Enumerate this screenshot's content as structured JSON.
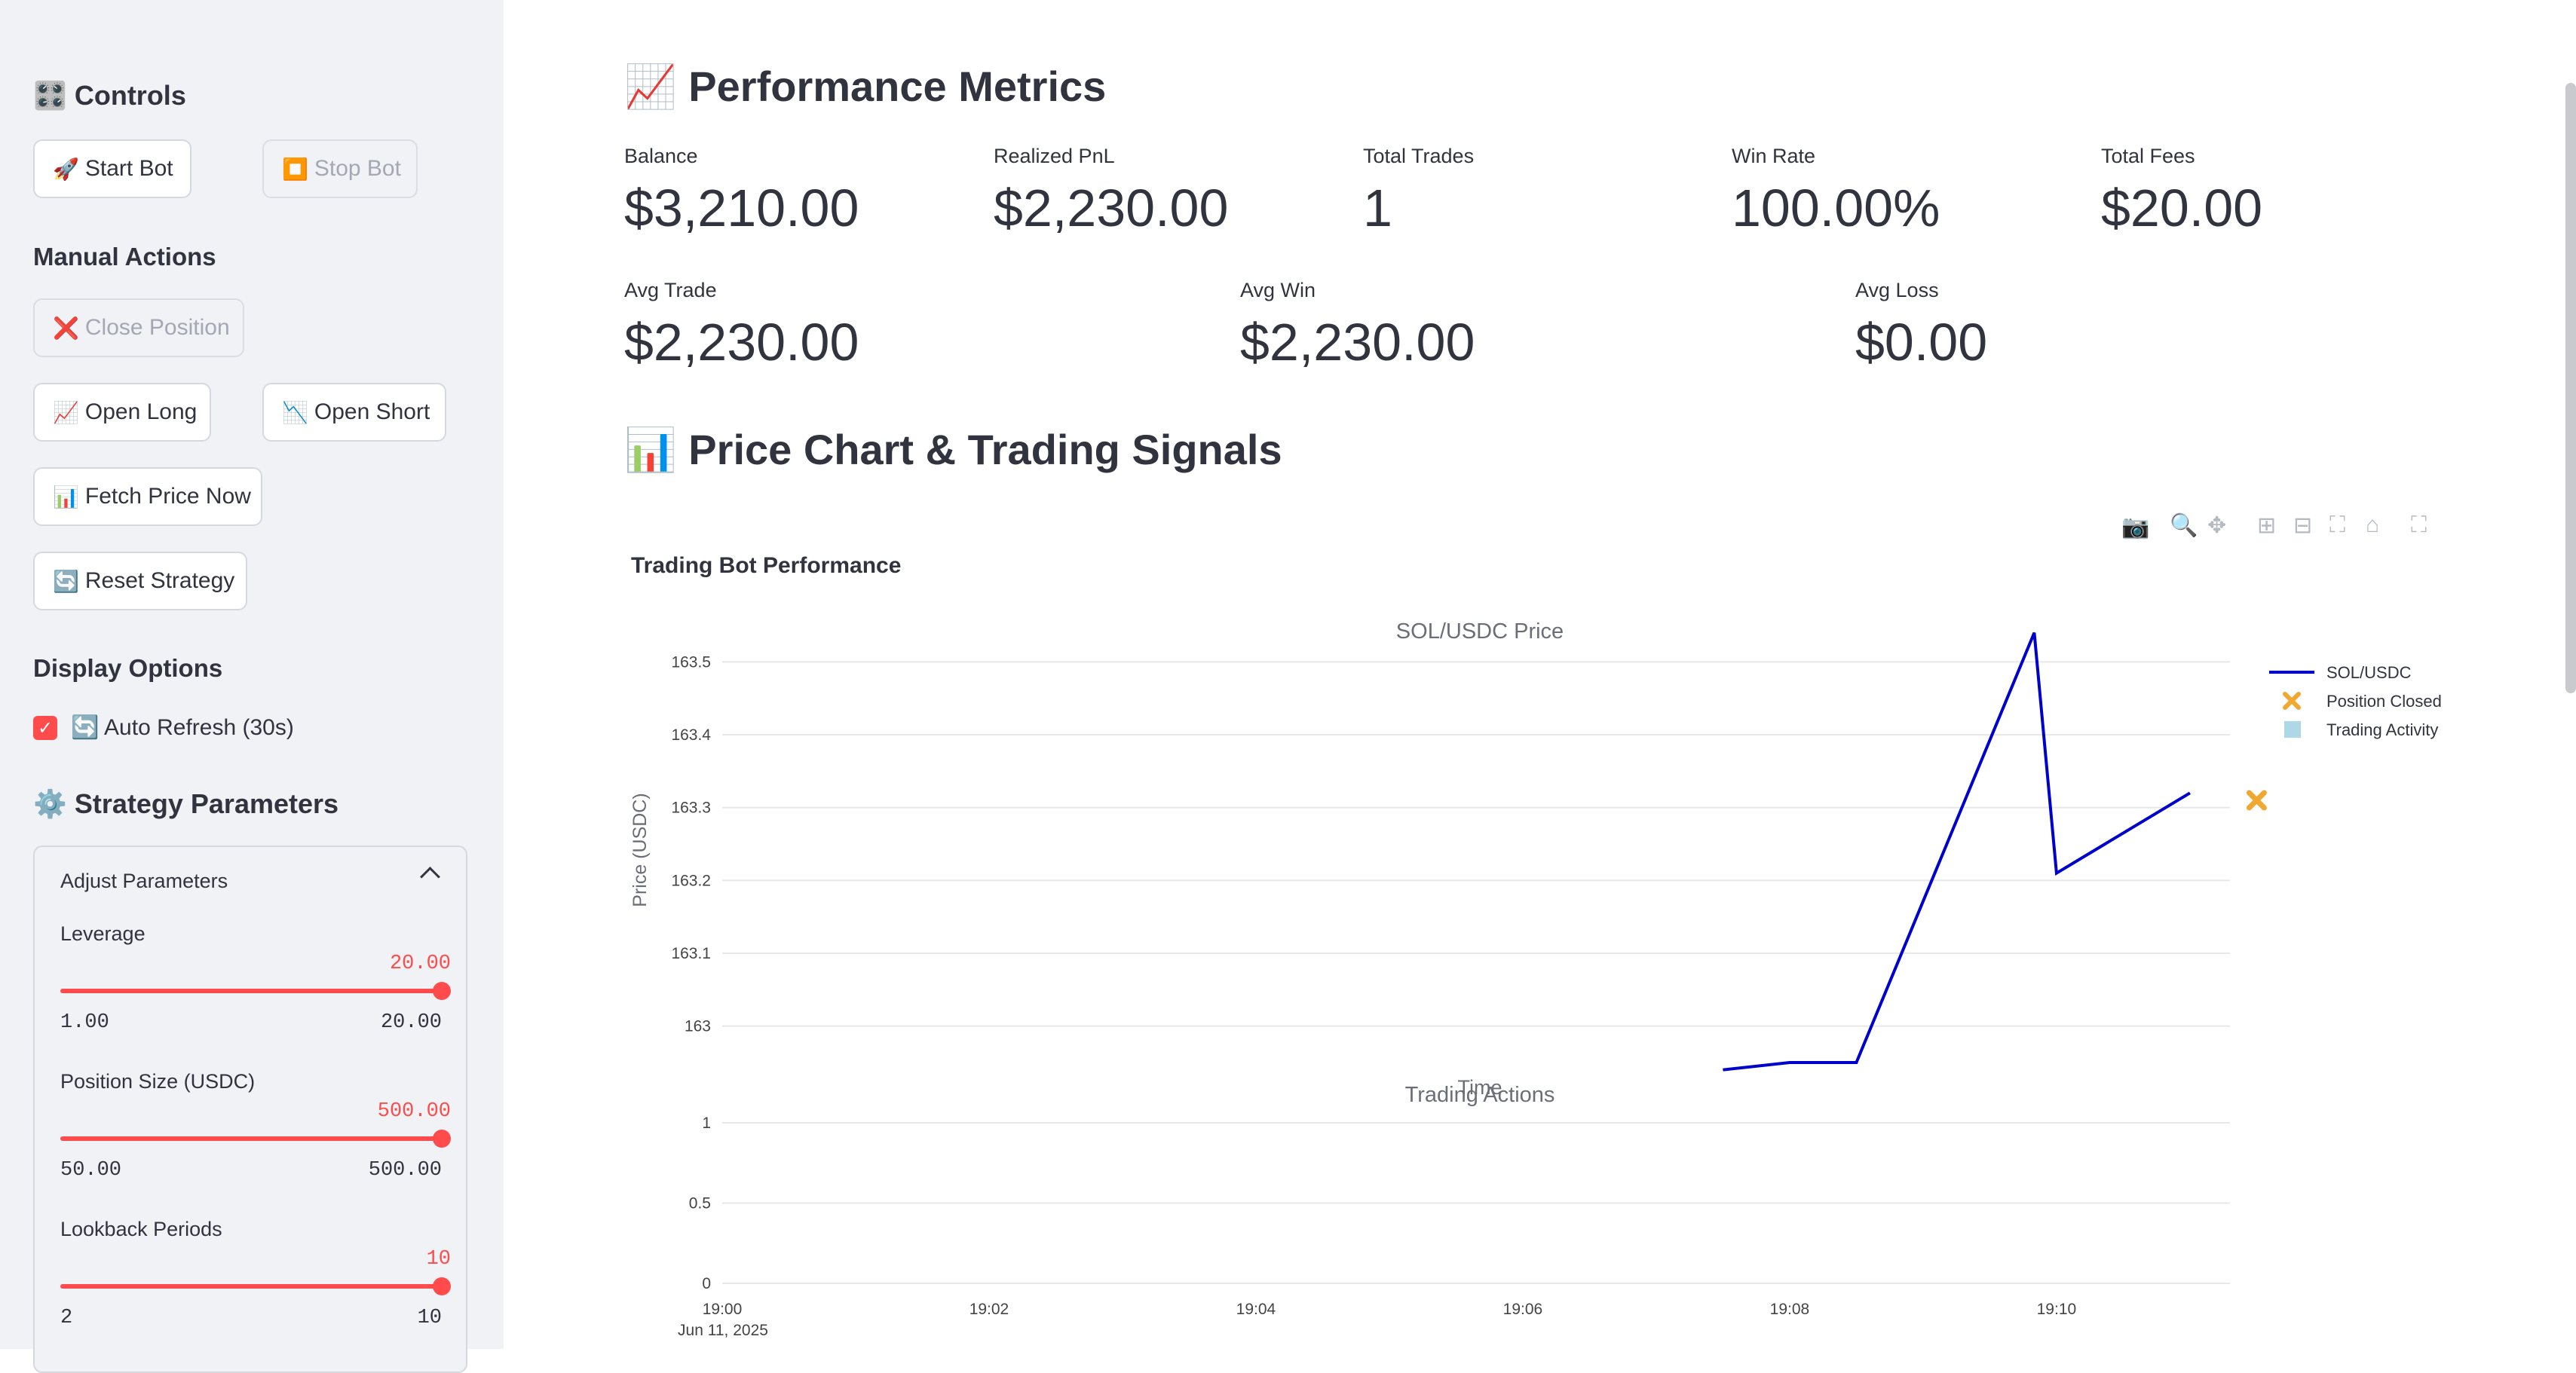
{
  "sidebar": {
    "controls_title": "Controls",
    "start_bot": "Start Bot",
    "stop_bot": "Stop Bot",
    "manual_actions_title": "Manual Actions",
    "close_position": "Close Position",
    "open_long": "Open Long",
    "open_short": "Open Short",
    "fetch_price": "Fetch Price Now",
    "reset_strategy": "Reset Strategy",
    "display_options_title": "Display Options",
    "auto_refresh": "Auto Refresh (30s)",
    "auto_refresh_checked": true,
    "strategy_params_title": "Strategy Parameters",
    "expander_title": "Adjust Parameters",
    "params": [
      {
        "label": "Leverage",
        "value": "20.00",
        "min": "1.00",
        "max": "20.00",
        "fraction": 1.0
      },
      {
        "label": "Position Size (USDC)",
        "value": "500.00",
        "min": "50.00",
        "max": "500.00",
        "fraction": 1.0
      },
      {
        "label": "Lookback Periods",
        "value": "10",
        "min": "2",
        "max": "10",
        "fraction": 1.0
      }
    ]
  },
  "metrics": {
    "title": "Performance Metrics",
    "row1": [
      {
        "label": "Balance",
        "value": "$3,210.00"
      },
      {
        "label": "Realized PnL",
        "value": "$2,230.00"
      },
      {
        "label": "Total Trades",
        "value": "1"
      },
      {
        "label": "Win Rate",
        "value": "100.00%"
      },
      {
        "label": "Total Fees",
        "value": "$20.00"
      }
    ],
    "row2": [
      {
        "label": "Avg Trade",
        "value": "$2,230.00"
      },
      {
        "label": "Avg Win",
        "value": "$2,230.00"
      },
      {
        "label": "Avg Loss",
        "value": "$0.00"
      }
    ]
  },
  "chart_section": {
    "title": "Price Chart & Trading Signals"
  },
  "chart_data": {
    "type": "line",
    "title": "Trading Bot Performance",
    "top_subplot_title": "SOL/USDC Price",
    "bottom_subplot_title": "Trading Actions",
    "xlabel": "Time",
    "ylabel": "Price (USDC)",
    "date_label": "Jun 11, 2025",
    "x_ticks": [
      "19:00",
      "19:02",
      "19:04",
      "19:06",
      "19:08",
      "19:10"
    ],
    "y_ticks_top": [
      "163",
      "163.1",
      "163.2",
      "163.3",
      "163.4",
      "163.5"
    ],
    "y_ticks_bottom": [
      "0",
      "0.5",
      "1"
    ],
    "ylim_top": [
      162.95,
      163.55
    ],
    "ylim_bottom": [
      0,
      1
    ],
    "series": [
      {
        "name": "SOL/USDC",
        "color": "#0000cc",
        "x": [
          "19:07:30",
          "19:08:00",
          "19:08:30",
          "19:09:50",
          "19:10:00",
          "19:11:00"
        ],
        "y": [
          162.94,
          162.95,
          162.95,
          163.54,
          163.21,
          163.32
        ]
      },
      {
        "name": "Position Closed",
        "color": "#f0a830",
        "marker": "x",
        "x": [
          "19:11:30"
        ],
        "y": [
          163.31
        ]
      },
      {
        "name": "Trading Activity",
        "color": "#add8e6",
        "marker": "square",
        "x": [],
        "y": []
      }
    ],
    "legend_position": "top-right"
  }
}
